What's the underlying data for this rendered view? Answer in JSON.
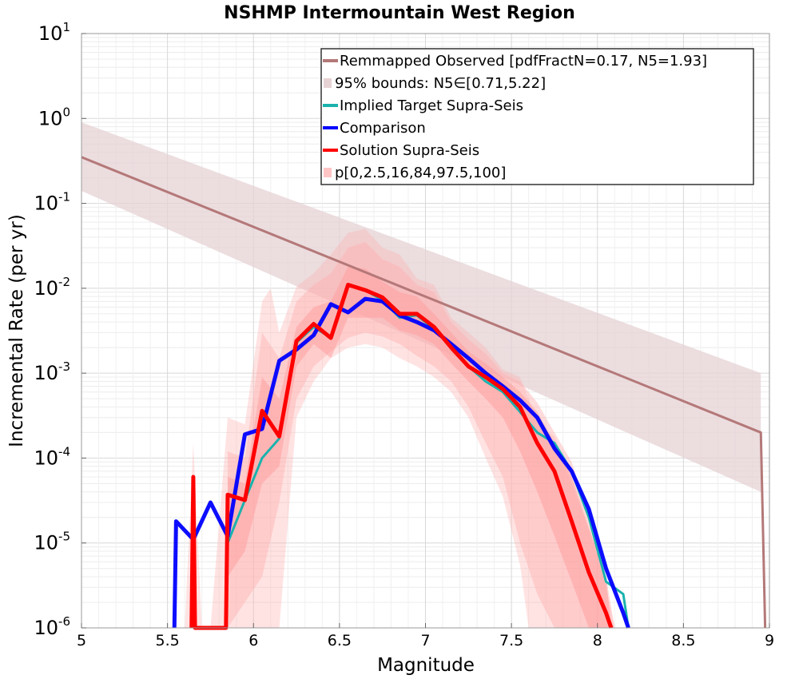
{
  "chart_data": {
    "type": "line",
    "title": "NSHMP Intermountain West Region",
    "xlabel": "Magnitude",
    "ylabel": "Incremental Rate (per yr)",
    "x_scale": "linear",
    "y_scale": "log",
    "xlim": [
      5,
      9
    ],
    "ylim": [
      1e-06,
      10
    ],
    "x_ticks": [
      {
        "value": 5,
        "label": "5"
      },
      {
        "value": 5.5,
        "label": "5.5"
      },
      {
        "value": 6,
        "label": "6"
      },
      {
        "value": 6.5,
        "label": "6.5"
      },
      {
        "value": 7,
        "label": "7"
      },
      {
        "value": 7.5,
        "label": "7.5"
      },
      {
        "value": 8,
        "label": "8"
      },
      {
        "value": 8.5,
        "label": "8.5"
      },
      {
        "value": 9,
        "label": "9"
      }
    ],
    "y_ticks": [
      {
        "value": 10,
        "base": "10",
        "exp": "1"
      },
      {
        "value": 1,
        "base": "10",
        "exp": "0"
      },
      {
        "value": 0.1,
        "base": "10",
        "exp": "-1"
      },
      {
        "value": 0.01,
        "base": "10",
        "exp": "-2"
      },
      {
        "value": 0.001,
        "base": "10",
        "exp": "-3"
      },
      {
        "value": 0.0001,
        "base": "10",
        "exp": "-4"
      },
      {
        "value": 1e-05,
        "base": "10",
        "exp": "-5"
      },
      {
        "value": 1e-06,
        "base": "10",
        "exp": "-6"
      }
    ],
    "grid": true,
    "legend_position": "top-right",
    "legend": [
      {
        "label": "Remmapped Observed [pdfFractN=0.17, N5=1.93]",
        "style": "line",
        "color": "#b47878"
      },
      {
        "label": "95% bounds: N5∈[0.71,5.22]",
        "style": "band",
        "color": "#e6d2d4"
      },
      {
        "label": "Implied Target Supra-Seis",
        "style": "line",
        "color": "#1ab2ad"
      },
      {
        "label": "Comparison",
        "style": "line",
        "color": "#0000ff"
      },
      {
        "label": "Solution Supra-Seis",
        "style": "line",
        "color": "#ff0000"
      },
      {
        "label": "p[0,2.5,16,84,97.5,100]",
        "style": "band",
        "color": "#ffc4c4"
      }
    ],
    "series": [
      {
        "name": "Remmapped Observed [pdfFractN=0.17, N5=1.93]",
        "color": "#b47878",
        "width": 3,
        "x": [
          5.0,
          8.95,
          8.975
        ],
        "y": [
          0.35,
          0.0002,
          1e-06
        ]
      },
      {
        "name": "Implied Target Supra-Seis",
        "color": "#1ab2ad",
        "width": 3,
        "x": [
          5.85,
          5.95,
          6.05,
          6.15,
          6.25,
          6.35,
          6.45,
          6.55,
          6.65,
          6.75,
          6.85,
          6.95,
          7.05,
          7.15,
          7.25,
          7.35,
          7.45,
          7.55,
          7.65,
          7.75,
          7.85,
          7.95,
          8.05,
          8.15,
          8.18
        ],
        "y": [
          1e-05,
          3.2e-05,
          0.0001,
          0.00017,
          0.0023,
          0.0035,
          0.0026,
          0.011,
          0.0095,
          0.0072,
          0.0045,
          0.0048,
          0.0033,
          0.002,
          0.0012,
          0.0008,
          0.0006,
          0.00035,
          0.0002,
          0.00015,
          7e-05,
          2e-05,
          3.5e-06,
          2.5e-06,
          1e-06
        ]
      },
      {
        "name": "Comparison",
        "color": "#0000ff",
        "width": 5,
        "x": [
          5.54,
          5.55,
          5.65,
          5.75,
          5.85,
          5.95,
          6.05,
          6.15,
          6.25,
          6.35,
          6.45,
          6.55,
          6.65,
          6.75,
          6.85,
          6.95,
          7.05,
          7.15,
          7.25,
          7.35,
          7.45,
          7.55,
          7.65,
          7.75,
          7.85,
          7.95,
          8.05,
          8.15,
          8.18
        ],
        "y": [
          1e-06,
          1.8e-05,
          1.1e-05,
          3e-05,
          1.2e-05,
          0.00019,
          0.00022,
          0.0014,
          0.0019,
          0.0028,
          0.0065,
          0.0052,
          0.0075,
          0.007,
          0.0048,
          0.004,
          0.0032,
          0.0022,
          0.0015,
          0.001,
          0.0007,
          0.00048,
          0.0003,
          0.00013,
          7e-05,
          2.5e-05,
          5e-06,
          1.5e-06,
          1e-06
        ]
      },
      {
        "name": "Solution Supra-Seis",
        "color": "#ff0000",
        "width": 5,
        "x": [
          5.64,
          5.65,
          5.66,
          5.84,
          5.85,
          5.95,
          6.05,
          6.15,
          6.25,
          6.35,
          6.45,
          6.55,
          6.65,
          6.75,
          6.85,
          6.95,
          7.05,
          7.15,
          7.25,
          7.35,
          7.45,
          7.55,
          7.65,
          7.75,
          7.85,
          7.95,
          8.05,
          8.08
        ],
        "y": [
          1e-06,
          6e-05,
          1e-06,
          1e-06,
          3.7e-05,
          3.2e-05,
          0.00036,
          0.00018,
          0.0024,
          0.0038,
          0.0026,
          0.011,
          0.0095,
          0.0078,
          0.005,
          0.005,
          0.0035,
          0.002,
          0.0012,
          0.0009,
          0.00065,
          0.0004,
          0.00015,
          7e-05,
          1.8e-05,
          4.5e-06,
          1.5e-06,
          1e-06
        ]
      }
    ],
    "bands": [
      {
        "name": "95% bounds: N5∈[0.71,5.22]",
        "color": "#e6d2d4",
        "opacity": 0.75,
        "x": [
          5.0,
          8.95
        ],
        "lower": [
          0.14,
          4e-05
        ],
        "upper": [
          0.9,
          0.001
        ]
      },
      {
        "name": "p[0,2.5,16,84,97.5,100] (0-100)",
        "color": "#ffb0b0",
        "opacity": 0.35,
        "x": [
          5.6,
          5.65,
          5.7,
          5.75,
          5.85,
          5.95,
          6.05,
          6.1,
          6.15,
          6.25,
          6.35,
          6.45,
          6.55,
          6.65,
          6.75,
          6.85,
          6.95,
          7.05,
          7.15,
          7.25,
          7.35,
          7.45,
          7.55,
          7.6,
          7.65,
          7.75,
          7.85,
          7.95,
          8.05,
          8.1
        ],
        "lower": [
          1e-06,
          1e-06,
          1e-06,
          1e-06,
          1e-06,
          1e-06,
          1e-06,
          1e-06,
          1e-06,
          0.0003,
          0.0008,
          0.0015,
          0.002,
          0.0022,
          0.002,
          0.0015,
          0.0012,
          0.0009,
          0.0006,
          0.0003,
          0.0001,
          3.5e-05,
          5.5e-06,
          1e-06,
          1e-06,
          1e-06,
          1e-06,
          1e-06,
          1e-06,
          1e-06
        ],
        "upper": [
          1e-06,
          0.00015,
          1e-06,
          1e-06,
          0.0003,
          0.00025,
          0.007,
          0.01,
          0.003,
          0.0105,
          0.015,
          0.025,
          0.045,
          0.05,
          0.03,
          0.025,
          0.013,
          0.011,
          0.0045,
          0.003,
          0.002,
          0.0011,
          0.0009,
          0.0005,
          0.00025,
          0.00018,
          5e-05,
          1.5e-05,
          3e-06,
          1e-06
        ]
      },
      {
        "name": "p[0,2.5,16,84,97.5,100] (2.5-97.5)",
        "color": "#ffb0b0",
        "opacity": 0.45,
        "x": [
          5.85,
          5.95,
          6.05,
          6.15,
          6.25,
          6.35,
          6.45,
          6.55,
          6.65,
          6.75,
          6.85,
          6.95,
          7.05,
          7.15,
          7.25,
          7.35,
          7.45,
          7.55,
          7.65,
          7.75,
          7.85,
          7.95,
          8.05,
          8.1
        ],
        "lower": [
          1e-06,
          2e-06,
          4e-06,
          3e-05,
          0.0005,
          0.0012,
          0.0018,
          0.0026,
          0.003,
          0.0027,
          0.0022,
          0.0016,
          0.0012,
          0.0008,
          0.0004,
          0.00015,
          6e-05,
          1e-05,
          2.5e-06,
          1e-06,
          1e-06,
          1e-06,
          1e-06,
          1e-06
        ],
        "upper": [
          0.00012,
          0.0001,
          0.003,
          0.0015,
          0.007,
          0.011,
          0.015,
          0.03,
          0.035,
          0.022,
          0.018,
          0.011,
          0.009,
          0.004,
          0.0025,
          0.0017,
          0.001,
          0.0008,
          0.00045,
          0.0002,
          9e-05,
          2e-05,
          4e-06,
          1e-06
        ]
      },
      {
        "name": "p[0,2.5,16,84,97.5,100] (16-84)",
        "color": "#ff9c9c",
        "opacity": 0.5,
        "x": [
          5.85,
          5.95,
          6.05,
          6.15,
          6.25,
          6.35,
          6.45,
          6.55,
          6.65,
          6.75,
          6.85,
          6.95,
          7.05,
          7.15,
          7.25,
          7.35,
          7.45,
          7.55,
          7.65,
          7.75,
          7.85,
          7.95,
          8.05,
          8.08
        ],
        "lower": [
          4e-06,
          8e-06,
          5e-05,
          8e-05,
          0.0012,
          0.0022,
          0.0015,
          0.0045,
          0.0045,
          0.0045,
          0.0032,
          0.0028,
          0.0022,
          0.0013,
          0.0008,
          0.0005,
          0.0003,
          0.00012,
          4e-05,
          1.2e-05,
          3.5e-06,
          1e-06,
          1e-06,
          1e-06
        ],
        "upper": [
          6e-05,
          5e-05,
          0.0009,
          0.0005,
          0.0035,
          0.006,
          0.007,
          0.018,
          0.017,
          0.012,
          0.009,
          0.008,
          0.005,
          0.003,
          0.0018,
          0.0013,
          0.0009,
          0.0006,
          0.00035,
          0.00015,
          6e-05,
          1.5e-05,
          4e-06,
          1e-06
        ]
      }
    ]
  }
}
